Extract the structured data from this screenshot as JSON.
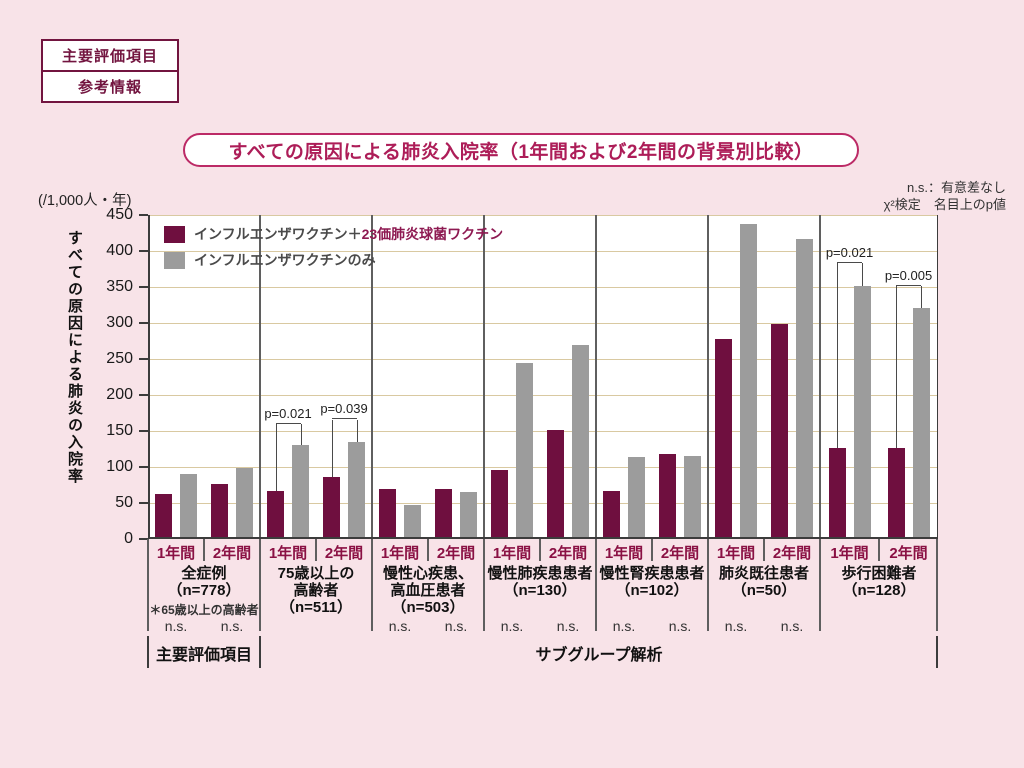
{
  "header": {
    "badges": [
      "主要評価項目",
      "参考情報"
    ]
  },
  "notes": [
    "n.s.：有意差なし",
    "χ²検定　名目上のp値"
  ],
  "colors": {
    "background": "#f8e3e8",
    "accent_maroon": "#6f0f3f",
    "accent_gray": "#9c9c9c",
    "title_crimson": "#ad1d58",
    "badge_maroon": "#72143f",
    "gridline_tan": "#d9c9a1",
    "period_label": "#8a1144"
  },
  "chart_data": {
    "type": "bar",
    "title": "すべての原因による肺炎入院率（1年間および2年間の背景別比較）",
    "ylabel": "すべての原因による肺炎の入院率",
    "unit_label": "(/1,000人・年)",
    "ylim": [
      0,
      450
    ],
    "ytick_step": 50,
    "grid": true,
    "legend_position": "top-left-inside",
    "legend": {
      "items": [
        {
          "swatch_color": "#6f0f3f",
          "parts": [
            {
              "text": "インフルエンザワクチン＋",
              "color": "#4a4a4a"
            },
            {
              "text": "23価肺炎球菌ワクチン",
              "color": "#8e1a52"
            }
          ]
        },
        {
          "swatch_color": "#9c9c9c",
          "parts": [
            {
              "text": "インフルエンザワクチンのみ",
              "color": "#4a4a4a"
            }
          ]
        }
      ]
    },
    "series_names": [
      "インフルエンザワクチン＋23価肺炎球菌ワクチン",
      "インフルエンザワクチンのみ"
    ],
    "groups": [
      {
        "name_lines": [
          "全症例",
          "（n=778）"
        ],
        "footnote": "＊65歳以上の高齢者",
        "pairs": [
          {
            "period": "1年間",
            "both": 63,
            "flu_only": 90,
            "sig": "n.s."
          },
          {
            "period": "2年間",
            "both": 77,
            "flu_only": 98,
            "sig": "n.s."
          }
        ]
      },
      {
        "name_lines": [
          "75歳以上の",
          "高齢者",
          "（n=511）"
        ],
        "pairs": [
          {
            "period": "1年間",
            "both": 67,
            "flu_only": 130,
            "p": "p=0.021",
            "bracket_y": 160
          },
          {
            "period": "2年間",
            "both": 86,
            "flu_only": 135,
            "p": "p=0.039",
            "bracket_y": 166
          }
        ]
      },
      {
        "name_lines": [
          "慢性心疾患、",
          "高血圧患者",
          "（n=503）"
        ],
        "pairs": [
          {
            "period": "1年間",
            "both": 70,
            "flu_only": 47,
            "sig": "n.s."
          },
          {
            "period": "2年間",
            "both": 69,
            "flu_only": 65,
            "sig": "n.s."
          }
        ]
      },
      {
        "name_lines": [
          "慢性肺疾患患者",
          "（n=130）"
        ],
        "pairs": [
          {
            "period": "1年間",
            "both": 96,
            "flu_only": 245,
            "sig": "n.s."
          },
          {
            "period": "2年間",
            "both": 152,
            "flu_only": 269,
            "sig": "n.s."
          }
        ]
      },
      {
        "name_lines": [
          "慢性腎疾患患者",
          "（n=102）"
        ],
        "pairs": [
          {
            "period": "1年間",
            "both": 67,
            "flu_only": 114,
            "sig": "n.s."
          },
          {
            "period": "2年間",
            "both": 118,
            "flu_only": 115,
            "sig": "n.s."
          }
        ]
      },
      {
        "name_lines": [
          "肺炎既往患者",
          "（n=50）"
        ],
        "pairs": [
          {
            "period": "1年間",
            "both": 278,
            "flu_only": 437,
            "sig": "n.s."
          },
          {
            "period": "2年間",
            "both": 299,
            "flu_only": 417,
            "sig": "n.s."
          }
        ]
      },
      {
        "name_lines": [
          "歩行困難者",
          "（n=128）"
        ],
        "pairs": [
          {
            "period": "1年間",
            "both": 126,
            "flu_only": 352,
            "p": "p=0.021",
            "bracket_y": 383
          },
          {
            "period": "2年間",
            "both": 126,
            "flu_only": 321,
            "p": "p=0.005",
            "bracket_y": 352
          }
        ]
      }
    ],
    "x_section_labels": [
      {
        "label": "主要評価項目",
        "from": 0,
        "to": 1
      },
      {
        "label": "サブグループ解析",
        "from": 1,
        "to": 7
      }
    ]
  }
}
